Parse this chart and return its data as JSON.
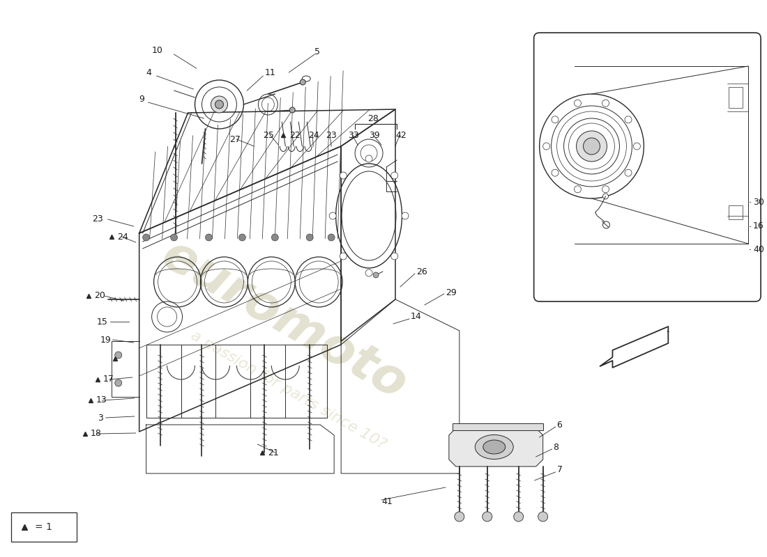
{
  "bg_color": "#ffffff",
  "line_color": "#2a2a2a",
  "label_color": "#1a1a1a",
  "watermark_color1": "#c8c4a0",
  "watermark_color2": "#d4d0b0",
  "fig_width": 11.0,
  "fig_height": 8.0,
  "legend_text": "▲ = 1",
  "label_fontsize": 9.0,
  "lw_main": 1.1,
  "lw_thin": 0.7,
  "lw_detail": 0.5
}
